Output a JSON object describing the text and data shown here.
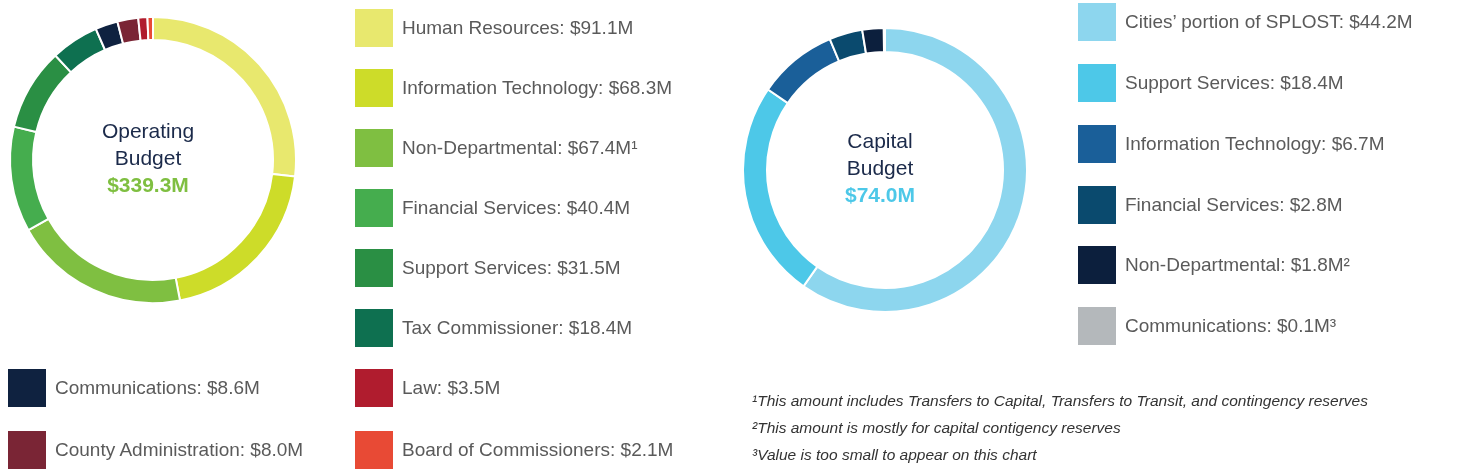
{
  "chart_data": [
    {
      "type": "donut",
      "title": "Operating Budget",
      "subtitle": "$339.3M",
      "categories": [
        "Human Resources: $91.1M",
        "Information Technology: $68.3M",
        "Non-Departmental: $67.4M¹",
        "Financial Services: $40.4M",
        "Support Services: $31.5M",
        "Tax Commissioner: $18.4M",
        "Communications: $8.6M",
        "County Administration: $8.0M",
        "Law: $3.5M",
        "Board of Commissioners: $2.1M"
      ],
      "values": [
        91.1,
        68.3,
        67.4,
        40.4,
        31.5,
        18.4,
        8.6,
        8.0,
        3.5,
        2.1
      ],
      "colors": [
        "#e8e86e",
        "#cddc29",
        "#7fbf41",
        "#45ad4e",
        "#2a8f44",
        "#0e7050",
        "#0f2240",
        "#7a2535",
        "#b01c2e",
        "#e84a35"
      ],
      "legend": "right"
    },
    {
      "type": "donut",
      "title": "Capital Budget",
      "subtitle": "$74.0M",
      "categories": [
        "Cities’ portion of SPLOST: $44.2M",
        "Support Services: $18.4M",
        "Information Technology: $6.7M",
        "Financial Services: $2.8M",
        "Non-Departmental: $1.8M²",
        "Communications: $0.1M³"
      ],
      "values": [
        44.2,
        18.4,
        6.7,
        2.8,
        1.8,
        0.1
      ],
      "colors": [
        "#8dd6ee",
        "#4dc8e8",
        "#1a5f99",
        "#0a4a6e",
        "#0c1f3d",
        "#b4b8bb"
      ],
      "legend": "right",
      "annotations": [
        "¹This amount includes Transfers to Capital, Transfers to Transit, and contingency reserves",
        "²This amount is mostly for capital contigency reserves",
        "³Value is too small to appear on this chart"
      ]
    }
  ]
}
